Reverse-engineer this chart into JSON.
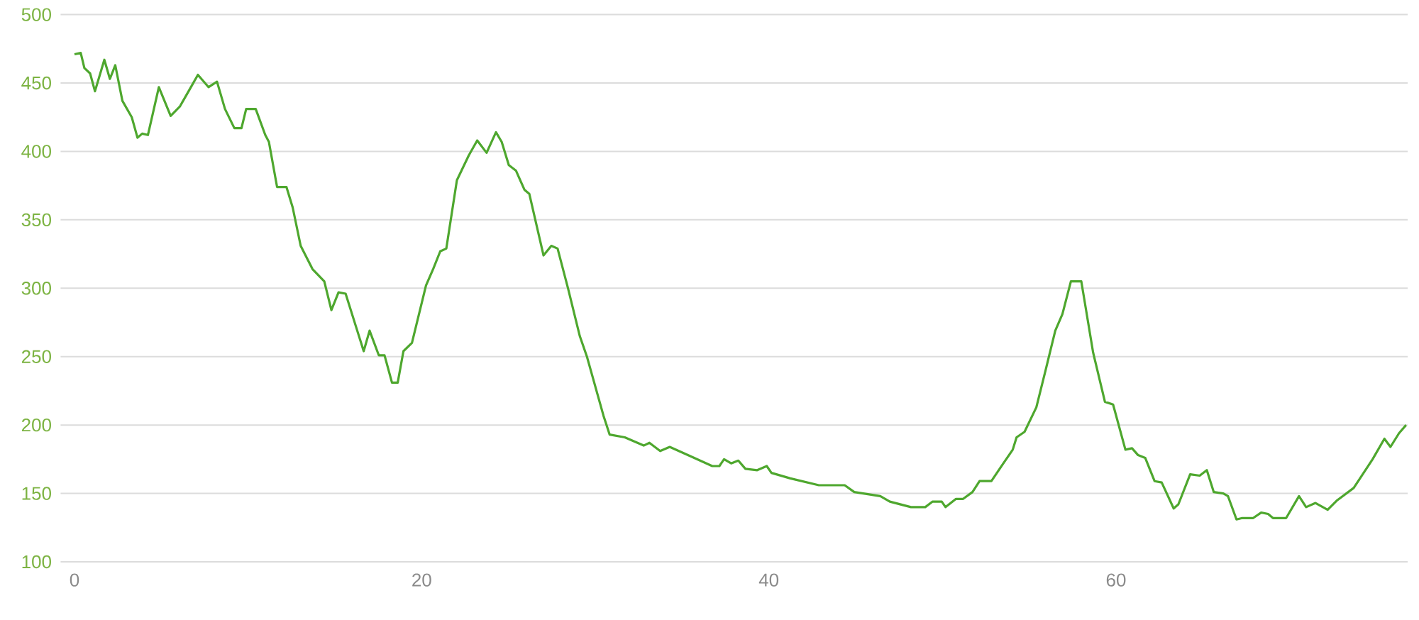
{
  "chart_data": {
    "type": "line",
    "x": [
      0,
      0.36,
      0.57,
      0.9,
      1.18,
      1.72,
      2.04,
      2.35,
      2.76,
      3.3,
      3.63,
      3.9,
      4.23,
      4.86,
      5.54,
      6.08,
      6.62,
      7.11,
      7.72,
      8.21,
      8.67,
      9.21,
      9.62,
      9.89,
      10.44,
      10.99,
      11.2,
      11.67,
      12.21,
      12.57,
      13.03,
      13.71,
      14.39,
      14.8,
      15.21,
      15.62,
      16.66,
      17,
      17.53,
      17.86,
      18.29,
      18.62,
      18.95,
      19.44,
      20.25,
      20.66,
      21.07,
      21.42,
      22.03,
      22.71,
      23.2,
      23.74,
      24.28,
      24.61,
      25.02,
      25.43,
      25.92,
      26.2,
      27.02,
      27.47,
      27.83,
      28.43,
      29.11,
      29.52,
      30.47,
      30.83,
      31.7,
      32.79,
      33.12,
      33.74,
      34.29,
      35.52,
      36.74,
      37.15,
      37.42,
      37.83,
      38.24,
      38.65,
      39.33,
      39.88,
      40.15,
      41.24,
      42.88,
      43.42,
      44.37,
      44.92,
      46.42,
      46.97,
      48.19,
      49.01,
      49.42,
      49.96,
      50.18,
      50.78,
      51.19,
      51.73,
      52.14,
      52.82,
      53.51,
      54.05,
      54.27,
      54.73,
      55.41,
      55.96,
      56.5,
      56.91,
      57.4,
      58,
      58.68,
      59.36,
      59.83,
      60.54,
      60.92,
      61.27,
      61.68,
      62.22,
      62.63,
      63.32,
      63.59,
      64.27,
      64.82,
      65.23,
      65.63,
      66.18,
      66.45,
      66.94,
      67.27,
      67.9,
      68.36,
      68.76,
      69.04,
      69.8,
      70.54,
      70.95,
      71.49,
      72.19,
      72.74,
      73.69,
      74.78,
      75.46,
      75.81,
      76.3,
      76.71
    ],
    "series": [
      {
        "color": "#4ea72e",
        "values": [
          471,
          472,
          461,
          457,
          444,
          467,
          453,
          463,
          437,
          425,
          410,
          413,
          412,
          447,
          426,
          433,
          445,
          456,
          447,
          451,
          431,
          417,
          417,
          431,
          431,
          412,
          407,
          374,
          374,
          359,
          331,
          314,
          305,
          284,
          297,
          296,
          254,
          269,
          251,
          251,
          231,
          231,
          254,
          260,
          302,
          314,
          327,
          329,
          379,
          397,
          408,
          399,
          414,
          407,
          390,
          386,
          372,
          369,
          324,
          331,
          329,
          300,
          265,
          250,
          207,
          193,
          191,
          185,
          187,
          181,
          184,
          177,
          170,
          170,
          175,
          172,
          174,
          168,
          167,
          170,
          165,
          161,
          156,
          156,
          156,
          151,
          148,
          144,
          140,
          140,
          144,
          144,
          140,
          146,
          146,
          151,
          159,
          159,
          172,
          182,
          191,
          195,
          213,
          241,
          269,
          281,
          305,
          305,
          253,
          217,
          215,
          182,
          183,
          178,
          176,
          159,
          158,
          139,
          142,
          164,
          163,
          167,
          151,
          150,
          148,
          131,
          132,
          132,
          136,
          135,
          132,
          132,
          148,
          140,
          143,
          138,
          145,
          154,
          175,
          190,
          184,
          194,
          200
        ]
      }
    ],
    "xlim": [
      -0.8,
      76.8
    ],
    "ylim": [
      100,
      500
    ],
    "xticks": [
      0,
      20,
      40,
      60
    ],
    "yticks": [
      100,
      150,
      200,
      250,
      300,
      350,
      400,
      450,
      500
    ],
    "grid": "y"
  }
}
